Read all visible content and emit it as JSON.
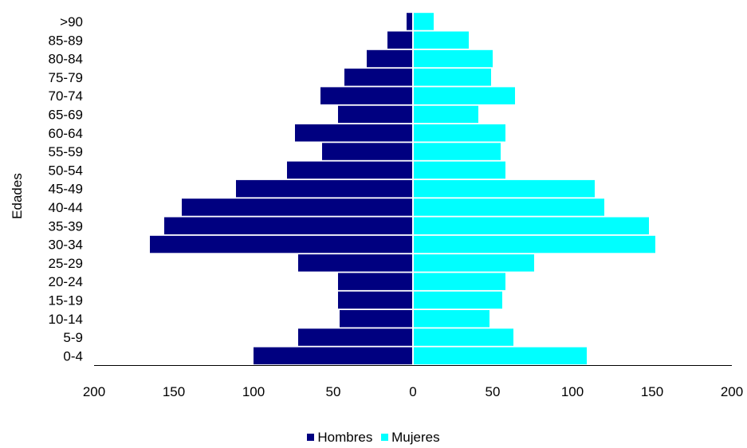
{
  "chart_data": {
    "type": "bar",
    "orientation": "horizontal",
    "subtype": "population-pyramid",
    "title": "",
    "xlabel": "",
    "ylabel": "Edades",
    "categories": [
      "0-4",
      "5-9",
      "10-14",
      "15-19",
      "20-24",
      "25-29",
      "30-34",
      "35-39",
      "40-44",
      "45-49",
      "50-54",
      "55-59",
      "60-64",
      "65-69",
      "70-74",
      "75-79",
      "80-84",
      "85-89",
      ">90"
    ],
    "series": [
      {
        "name": "Hombres",
        "color": "#000080",
        "side": "left",
        "values": [
          100,
          72,
          46,
          47,
          47,
          72,
          165,
          156,
          145,
          111,
          79,
          57,
          74,
          47,
          58,
          43,
          29,
          16,
          4
        ]
      },
      {
        "name": "Mujeres",
        "color": "#00ffff",
        "side": "right",
        "values": [
          109,
          63,
          48,
          56,
          58,
          76,
          152,
          148,
          120,
          114,
          58,
          55,
          58,
          41,
          64,
          49,
          50,
          35,
          13
        ]
      }
    ],
    "x_ticks": [
      "200",
      "150",
      "100",
      "50",
      "0",
      "50",
      "100",
      "150",
      "200"
    ],
    "xlim": [
      -200,
      200
    ],
    "grid": false,
    "legend_position": "bottom-center"
  }
}
